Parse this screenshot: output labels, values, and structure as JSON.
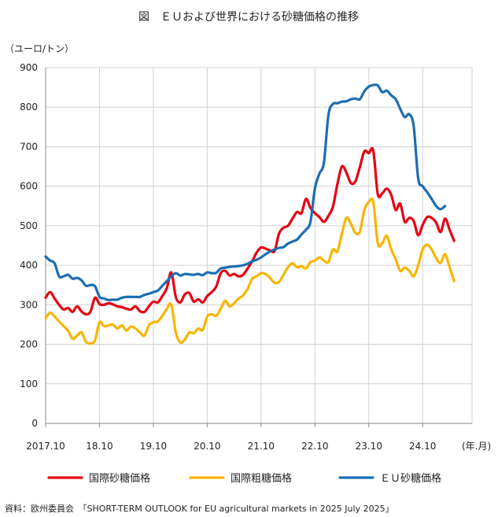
{
  "chart_data": {
    "type": "line",
    "title": "図　ＥＵおよび世界における砂糖価格の推移",
    "ylabel": "（ユーロ/トン）",
    "xlabel_suffix": "(年.月)",
    "ylim": [
      0,
      900
    ],
    "yticks": [
      0,
      100,
      200,
      300,
      400,
      500,
      600,
      700,
      800,
      900
    ],
    "xlim": [
      0,
      95
    ],
    "x_unit": "months since 2017.10",
    "xtick_labels": [
      {
        "label": "2017.10",
        "x": 0
      },
      {
        "label": "18.10",
        "x": 12
      },
      {
        "label": "19.10",
        "x": 24
      },
      {
        "label": "20.10",
        "x": 36
      },
      {
        "label": "21.10",
        "x": 48
      },
      {
        "label": "22.10",
        "x": 60
      },
      {
        "label": "23.10",
        "x": 72
      },
      {
        "label": "24.10",
        "x": 84
      }
    ],
    "series": [
      {
        "name": "国際砂糖価格",
        "color": "#e60012",
        "points": [
          [
            0,
            318
          ],
          [
            1,
            332
          ],
          [
            2,
            316
          ],
          [
            3,
            300
          ],
          [
            4,
            288
          ],
          [
            5,
            292
          ],
          [
            6,
            282
          ],
          [
            7,
            296
          ],
          [
            8,
            283
          ],
          [
            9,
            276
          ],
          [
            10,
            283
          ],
          [
            11,
            318
          ],
          [
            12,
            302
          ],
          [
            13,
            300
          ],
          [
            14,
            304
          ],
          [
            15,
            301
          ],
          [
            16,
            296
          ],
          [
            17,
            294
          ],
          [
            18,
            290
          ],
          [
            19,
            288
          ],
          [
            20,
            296
          ],
          [
            21,
            284
          ],
          [
            22,
            282
          ],
          [
            23,
            296
          ],
          [
            24,
            308
          ],
          [
            25,
            306
          ],
          [
            26,
            322
          ],
          [
            27,
            342
          ],
          [
            28,
            382
          ],
          [
            29,
            320
          ],
          [
            30,
            306
          ],
          [
            31,
            326
          ],
          [
            32,
            330
          ],
          [
            33,
            308
          ],
          [
            34,
            314
          ],
          [
            35,
            306
          ],
          [
            36,
            322
          ],
          [
            37,
            332
          ],
          [
            38,
            346
          ],
          [
            39,
            380
          ],
          [
            40,
            386
          ],
          [
            41,
            374
          ],
          [
            42,
            378
          ],
          [
            43,
            372
          ],
          [
            44,
            376
          ],
          [
            45,
            392
          ],
          [
            46,
            410
          ],
          [
            47,
            432
          ],
          [
            48,
            445
          ],
          [
            49,
            442
          ],
          [
            50,
            438
          ],
          [
            51,
            436
          ],
          [
            52,
            480
          ],
          [
            53,
            495
          ],
          [
            54,
            500
          ],
          [
            55,
            518
          ],
          [
            56,
            535
          ],
          [
            57,
            532
          ],
          [
            58,
            568
          ],
          [
            59,
            545
          ],
          [
            60,
            532
          ],
          [
            61,
            522
          ],
          [
            62,
            510
          ],
          [
            63,
            525
          ],
          [
            64,
            548
          ],
          [
            65,
            605
          ],
          [
            66,
            650
          ],
          [
            67,
            635
          ],
          [
            68,
            608
          ],
          [
            69,
            612
          ],
          [
            70,
            648
          ],
          [
            71,
            688
          ],
          [
            72,
            684
          ],
          [
            73,
            690
          ],
          [
            74,
            580
          ],
          [
            75,
            582
          ],
          [
            76,
            594
          ],
          [
            77,
            578
          ],
          [
            78,
            540
          ],
          [
            79,
            556
          ],
          [
            80,
            510
          ],
          [
            81,
            520
          ],
          [
            82,
            512
          ],
          [
            83,
            476
          ],
          [
            84,
            502
          ],
          [
            85,
            522
          ],
          [
            86,
            520
          ],
          [
            87,
            508
          ],
          [
            88,
            484
          ],
          [
            89,
            518
          ],
          [
            90,
            490
          ],
          [
            91,
            462
          ]
        ]
      },
      {
        "name": "国際粗糖価格",
        "color": "#f8b500",
        "points": [
          [
            0,
            266
          ],
          [
            1,
            280
          ],
          [
            2,
            270
          ],
          [
            3,
            258
          ],
          [
            4,
            246
          ],
          [
            5,
            234
          ],
          [
            6,
            214
          ],
          [
            7,
            222
          ],
          [
            8,
            230
          ],
          [
            9,
            206
          ],
          [
            10,
            202
          ],
          [
            11,
            210
          ],
          [
            12,
            256
          ],
          [
            13,
            246
          ],
          [
            14,
            248
          ],
          [
            15,
            250
          ],
          [
            16,
            240
          ],
          [
            17,
            248
          ],
          [
            18,
            235
          ],
          [
            19,
            245
          ],
          [
            20,
            240
          ],
          [
            21,
            230
          ],
          [
            22,
            222
          ],
          [
            23,
            248
          ],
          [
            24,
            256
          ],
          [
            25,
            258
          ],
          [
            26,
            272
          ],
          [
            27,
            290
          ],
          [
            28,
            300
          ],
          [
            29,
            230
          ],
          [
            30,
            205
          ],
          [
            31,
            212
          ],
          [
            32,
            230
          ],
          [
            33,
            228
          ],
          [
            34,
            240
          ],
          [
            35,
            236
          ],
          [
            36,
            270
          ],
          [
            37,
            276
          ],
          [
            38,
            272
          ],
          [
            39,
            290
          ],
          [
            40,
            310
          ],
          [
            41,
            296
          ],
          [
            42,
            304
          ],
          [
            43,
            316
          ],
          [
            44,
            324
          ],
          [
            45,
            340
          ],
          [
            46,
            366
          ],
          [
            47,
            372
          ],
          [
            48,
            380
          ],
          [
            49,
            378
          ],
          [
            50,
            368
          ],
          [
            51,
            356
          ],
          [
            52,
            358
          ],
          [
            53,
            376
          ],
          [
            54,
            395
          ],
          [
            55,
            405
          ],
          [
            56,
            395
          ],
          [
            57,
            398
          ],
          [
            58,
            392
          ],
          [
            59,
            408
          ],
          [
            60,
            412
          ],
          [
            61,
            420
          ],
          [
            62,
            412
          ],
          [
            63,
            408
          ],
          [
            64,
            440
          ],
          [
            65,
            435
          ],
          [
            66,
            480
          ],
          [
            67,
            520
          ],
          [
            68,
            505
          ],
          [
            69,
            482
          ],
          [
            70,
            485
          ],
          [
            71,
            540
          ],
          [
            72,
            560
          ],
          [
            73,
            560
          ],
          [
            74,
            456
          ],
          [
            75,
            456
          ],
          [
            76,
            475
          ],
          [
            77,
            440
          ],
          [
            78,
            415
          ],
          [
            79,
            386
          ],
          [
            80,
            394
          ],
          [
            81,
            386
          ],
          [
            82,
            372
          ],
          [
            83,
            400
          ],
          [
            84,
            440
          ],
          [
            85,
            452
          ],
          [
            86,
            440
          ],
          [
            87,
            418
          ],
          [
            88,
            406
          ],
          [
            89,
            428
          ],
          [
            90,
            395
          ],
          [
            91,
            360
          ]
        ]
      },
      {
        "name": "ＥＵ砂糖価格",
        "color": "#1c6db3",
        "points": [
          [
            0,
            422
          ],
          [
            1,
            412
          ],
          [
            2,
            405
          ],
          [
            3,
            372
          ],
          [
            4,
            372
          ],
          [
            5,
            376
          ],
          [
            6,
            366
          ],
          [
            7,
            368
          ],
          [
            8,
            362
          ],
          [
            9,
            348
          ],
          [
            10,
            350
          ],
          [
            11,
            347
          ],
          [
            12,
            320
          ],
          [
            13,
            316
          ],
          [
            14,
            312
          ],
          [
            15,
            313
          ],
          [
            16,
            313
          ],
          [
            17,
            318
          ],
          [
            18,
            320
          ],
          [
            19,
            320
          ],
          [
            20,
            320
          ],
          [
            21,
            320
          ],
          [
            22,
            325
          ],
          [
            23,
            328
          ],
          [
            24,
            332
          ],
          [
            25,
            336
          ],
          [
            26,
            348
          ],
          [
            27,
            360
          ],
          [
            28,
            372
          ],
          [
            29,
            380
          ],
          [
            30,
            374
          ],
          [
            31,
            378
          ],
          [
            32,
            377
          ],
          [
            33,
            376
          ],
          [
            34,
            378
          ],
          [
            35,
            375
          ],
          [
            36,
            382
          ],
          [
            37,
            380
          ],
          [
            38,
            381
          ],
          [
            39,
            392
          ],
          [
            40,
            394
          ],
          [
            41,
            396
          ],
          [
            42,
            397
          ],
          [
            43,
            398
          ],
          [
            44,
            400
          ],
          [
            45,
            404
          ],
          [
            46,
            410
          ],
          [
            47,
            414
          ],
          [
            48,
            420
          ],
          [
            49,
            428
          ],
          [
            50,
            435
          ],
          [
            51,
            440
          ],
          [
            52,
            444
          ],
          [
            53,
            446
          ],
          [
            54,
            455
          ],
          [
            55,
            460
          ],
          [
            56,
            465
          ],
          [
            57,
            478
          ],
          [
            58,
            490
          ],
          [
            59,
            510
          ],
          [
            60,
            595
          ],
          [
            61,
            632
          ],
          [
            62,
            660
          ],
          [
            63,
            780
          ],
          [
            64,
            808
          ],
          [
            65,
            810
          ],
          [
            66,
            814
          ],
          [
            67,
            815
          ],
          [
            68,
            820
          ],
          [
            69,
            822
          ],
          [
            70,
            820
          ],
          [
            71,
            840
          ],
          [
            72,
            852
          ],
          [
            73,
            856
          ],
          [
            74,
            855
          ],
          [
            75,
            838
          ],
          [
            76,
            842
          ],
          [
            77,
            830
          ],
          [
            78,
            820
          ],
          [
            79,
            796
          ],
          [
            80,
            775
          ],
          [
            81,
            782
          ],
          [
            82,
            752
          ],
          [
            83,
            620
          ],
          [
            84,
            600
          ],
          [
            85,
            585
          ],
          [
            86,
            568
          ],
          [
            87,
            550
          ],
          [
            88,
            542
          ],
          [
            89,
            550
          ]
        ]
      }
    ],
    "source_label": "資料：欧州委員会　「SHORT-TERM OUTLOOK for EU agricultural markets in 2025 July 2025」"
  }
}
